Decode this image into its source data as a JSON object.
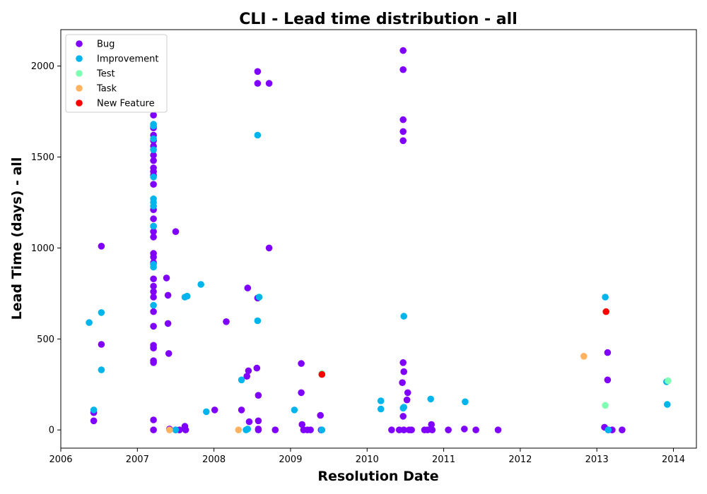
{
  "chart_data": {
    "type": "scatter",
    "title": "CLI - Lead time distribution - all",
    "xlabel": "Resolution Date",
    "ylabel": "Lead Time (days) - all",
    "xlim": [
      2006.0,
      2014.3
    ],
    "ylim": [
      -100,
      2200
    ],
    "x_ticks": [
      "2006",
      "2007",
      "2008",
      "2009",
      "2010",
      "2011",
      "2012",
      "2013",
      "2014"
    ],
    "y_ticks": [
      "0",
      "500",
      "1000",
      "1500",
      "2000"
    ],
    "grid": false,
    "legend_position": "top-left",
    "series": [
      {
        "name": "Bug",
        "color": "#8000ff",
        "points": [
          [
            2006.43,
            50
          ],
          [
            2006.43,
            95
          ],
          [
            2006.53,
            470
          ],
          [
            2006.53,
            1010
          ],
          [
            2007.21,
            0
          ],
          [
            2007.21,
            55
          ],
          [
            2007.21,
            370
          ],
          [
            2007.21,
            380
          ],
          [
            2007.21,
            450
          ],
          [
            2007.21,
            465
          ],
          [
            2007.21,
            570
          ],
          [
            2007.21,
            650
          ],
          [
            2007.21,
            730
          ],
          [
            2007.21,
            760
          ],
          [
            2007.21,
            790
          ],
          [
            2007.21,
            830
          ],
          [
            2007.21,
            920
          ],
          [
            2007.21,
            950
          ],
          [
            2007.21,
            970
          ],
          [
            2007.21,
            1060
          ],
          [
            2007.21,
            1090
          ],
          [
            2007.21,
            1120
          ],
          [
            2007.21,
            1160
          ],
          [
            2007.21,
            1210
          ],
          [
            2007.21,
            1350
          ],
          [
            2007.21,
            1400
          ],
          [
            2007.21,
            1420
          ],
          [
            2007.21,
            1440
          ],
          [
            2007.21,
            1480
          ],
          [
            2007.21,
            1510
          ],
          [
            2007.21,
            1560
          ],
          [
            2007.21,
            1590
          ],
          [
            2007.21,
            1620
          ],
          [
            2007.21,
            1660
          ],
          [
            2007.21,
            1730
          ],
          [
            2007.38,
            835
          ],
          [
            2007.4,
            585
          ],
          [
            2007.4,
            740
          ],
          [
            2007.41,
            420
          ],
          [
            2007.42,
            5
          ],
          [
            2007.5,
            1090
          ],
          [
            2007.5,
            0
          ],
          [
            2007.55,
            0
          ],
          [
            2007.62,
            20
          ],
          [
            2007.63,
            0
          ],
          [
            2008.01,
            110
          ],
          [
            2008.16,
            595
          ],
          [
            2008.36,
            110
          ],
          [
            2008.43,
            295
          ],
          [
            2008.44,
            780
          ],
          [
            2008.45,
            325
          ],
          [
            2008.46,
            45
          ],
          [
            2008.56,
            340
          ],
          [
            2008.57,
            725
          ],
          [
            2008.57,
            1905
          ],
          [
            2008.57,
            1970
          ],
          [
            2008.58,
            190
          ],
          [
            2008.58,
            50
          ],
          [
            2008.58,
            5
          ],
          [
            2008.58,
            0
          ],
          [
            2008.72,
            1905
          ],
          [
            2008.72,
            1000
          ],
          [
            2008.8,
            0
          ],
          [
            2009.14,
            365
          ],
          [
            2009.14,
            205
          ],
          [
            2009.15,
            30
          ],
          [
            2009.17,
            0
          ],
          [
            2009.22,
            0
          ],
          [
            2009.26,
            0
          ],
          [
            2009.39,
            80
          ],
          [
            2009.4,
            0
          ],
          [
            2010.32,
            0
          ],
          [
            2010.42,
            0
          ],
          [
            2010.47,
            2085
          ],
          [
            2010.47,
            1980
          ],
          [
            2010.47,
            1705
          ],
          [
            2010.47,
            1640
          ],
          [
            2010.47,
            1590
          ],
          [
            2010.47,
            370
          ],
          [
            2010.48,
            320
          ],
          [
            2010.46,
            260
          ],
          [
            2010.47,
            75
          ],
          [
            2010.48,
            0
          ],
          [
            2010.53,
            205
          ],
          [
            2010.52,
            165
          ],
          [
            2010.55,
            0
          ],
          [
            2010.58,
            0
          ],
          [
            2010.75,
            0
          ],
          [
            2010.79,
            0
          ],
          [
            2010.84,
            30
          ],
          [
            2010.85,
            0
          ],
          [
            2011.06,
            0
          ],
          [
            2011.27,
            5
          ],
          [
            2011.42,
            0
          ],
          [
            2011.71,
            0
          ],
          [
            2013.1,
            15
          ],
          [
            2013.14,
            425
          ],
          [
            2013.14,
            275
          ],
          [
            2013.15,
            0
          ],
          [
            2013.2,
            0
          ],
          [
            2013.33,
            0
          ]
        ]
      },
      {
        "name": "Improvement",
        "color": "#00b5eb",
        "points": [
          [
            2006.37,
            590
          ],
          [
            2006.43,
            110
          ],
          [
            2006.53,
            645
          ],
          [
            2006.53,
            330
          ],
          [
            2007.21,
            685
          ],
          [
            2007.21,
            895
          ],
          [
            2007.21,
            910
          ],
          [
            2007.21,
            1120
          ],
          [
            2007.21,
            1230
          ],
          [
            2007.21,
            1250
          ],
          [
            2007.21,
            1270
          ],
          [
            2007.21,
            1390
          ],
          [
            2007.21,
            1540
          ],
          [
            2007.21,
            1600
          ],
          [
            2007.21,
            1670
          ],
          [
            2007.21,
            1680
          ],
          [
            2007.5,
            0
          ],
          [
            2007.62,
            730
          ],
          [
            2007.65,
            735
          ],
          [
            2007.83,
            800
          ],
          [
            2007.9,
            100
          ],
          [
            2008.36,
            275
          ],
          [
            2008.42,
            0
          ],
          [
            2008.44,
            5
          ],
          [
            2008.57,
            600
          ],
          [
            2008.57,
            1620
          ],
          [
            2008.59,
            730
          ],
          [
            2009.05,
            110
          ],
          [
            2009.41,
            0
          ],
          [
            2010.18,
            160
          ],
          [
            2010.18,
            115
          ],
          [
            2010.47,
            120
          ],
          [
            2010.48,
            125
          ],
          [
            2010.48,
            625
          ],
          [
            2010.83,
            170
          ],
          [
            2011.28,
            155
          ],
          [
            2013.11,
            730
          ],
          [
            2013.15,
            0
          ],
          [
            2013.91,
            265
          ],
          [
            2013.92,
            140
          ]
        ]
      },
      {
        "name": "Test",
        "color": "#80ffb4",
        "points": [
          [
            2009.41,
            310
          ],
          [
            2013.11,
            135
          ],
          [
            2013.93,
            270
          ]
        ]
      },
      {
        "name": "Task",
        "color": "#ffb360",
        "points": [
          [
            2007.42,
            0
          ],
          [
            2008.32,
            0
          ],
          [
            2012.83,
            405
          ]
        ]
      },
      {
        "name": "New Feature",
        "color": "#ff0000",
        "points": [
          [
            2009.41,
            305
          ],
          [
            2013.12,
            650
          ]
        ]
      }
    ]
  }
}
